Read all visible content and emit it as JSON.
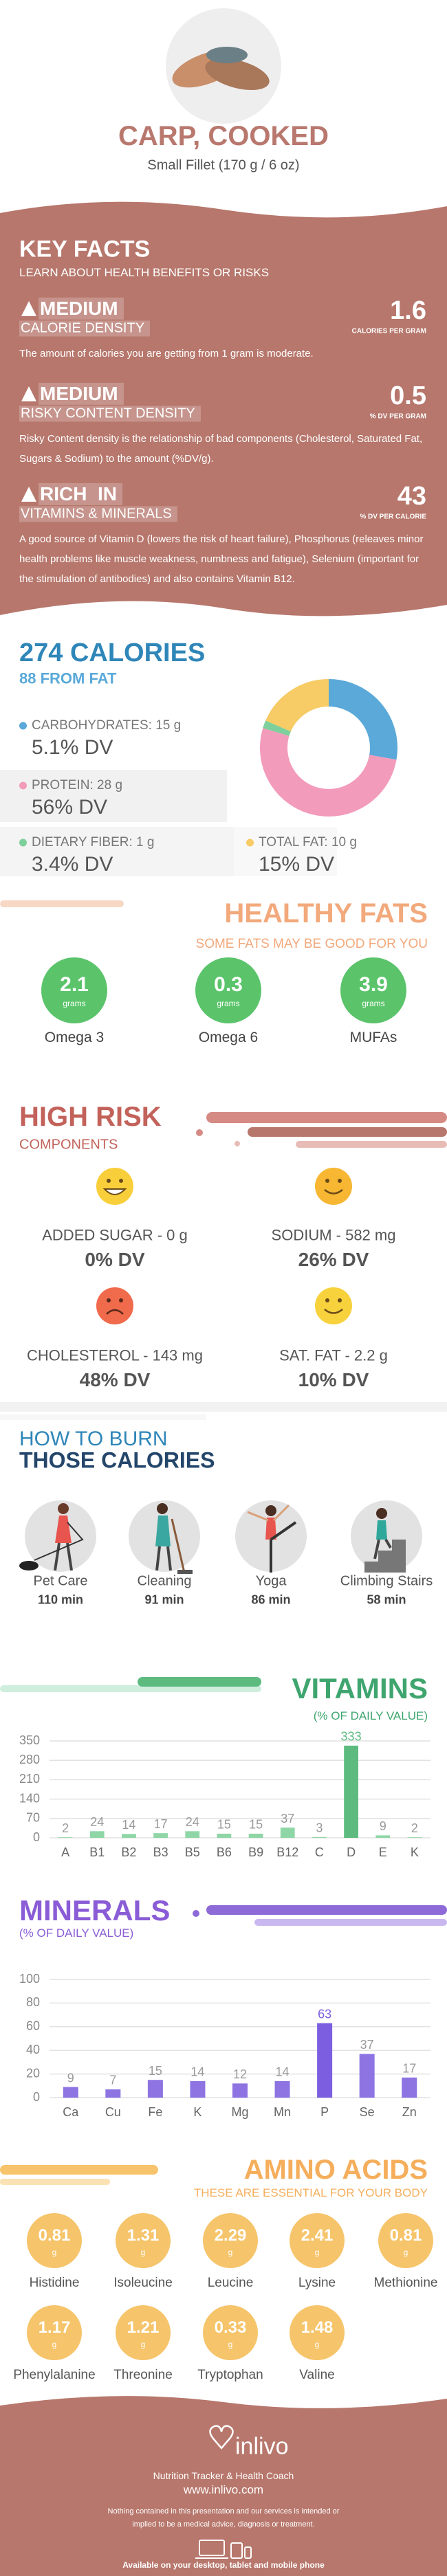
{
  "header": {
    "title": "CARP, COOKED",
    "serving": "Small Fillet (170 g / 6 oz)"
  },
  "key_facts": {
    "title": "KEY FACTS",
    "subtitle": "LEARN ABOUT HEALTH BENEFITS OR RISKS",
    "items": [
      {
        "level": "MEDIUM",
        "name": "CALORIE DENSITY",
        "value": 1.6,
        "unit": "CALORIES PER GRAM",
        "text": "The amount of calories you are getting from 1 gram is moderate."
      },
      {
        "level": "MEDIUM",
        "name": "RISKY CONTENT DENSITY",
        "value": 0.5,
        "unit": "% DV PER GRAM",
        "text": "Risky Content density is the relationship of bad components (Cholesterol, Saturated Fat, Sugars & Sodium) to the amount (%DV/g)."
      },
      {
        "level": "RICH  IN",
        "name": "VITAMINS & MINERALS",
        "value": 43,
        "unit": "% DV PER CALORIE",
        "text": "A good source of Vitamin D (lowers the risk of heart failure), Phosphorus (releaves minor health problems like muscle weakness, numbness and fatigue), Selenium (important for the stimulation of antibodies) and also contains Vitamin B12."
      }
    ]
  },
  "calories": {
    "title": "274 CALORIES",
    "from_fat": "88 FROM FAT",
    "macros": [
      {
        "label": "CARBOHYDRATES:",
        "amount": 15,
        "unit": "g",
        "dv": "5.1% DV",
        "color": "#5aa9d9"
      },
      {
        "label": "PROTEIN:",
        "amount": 28,
        "unit": "g",
        "dv": "56% DV",
        "color": "#f39bbb"
      },
      {
        "label": "DIETARY FIBER:",
        "amount": 1,
        "unit": "g",
        "dv": "3.4% DV",
        "color": "#7dcf9b"
      },
      {
        "label": "TOTAL FAT:",
        "amount": 10,
        "unit": "g",
        "dv": "15% DV",
        "color": "#f7cb65"
      }
    ]
  },
  "healthy_fats": {
    "title": "HEALTHY FATS",
    "subtitle": "SOME FATS MAY BE GOOD FOR YOU",
    "items": [
      {
        "amount": 2.1,
        "unit": "grams",
        "name": "Omega 3"
      },
      {
        "amount": 0.3,
        "unit": "grams",
        "name": "Omega 6"
      },
      {
        "amount": 3.9,
        "unit": "grams",
        "name": "MUFAs"
      }
    ]
  },
  "high_risk": {
    "title": "HIGH RISK",
    "subtitle": "COMPONENTS",
    "items": [
      {
        "label": "ADDED SUGAR - 0 g",
        "dv": "0% DV"
      },
      {
        "label": "SODIUM - 582 mg",
        "dv": "26% DV"
      },
      {
        "label": "CHOLESTEROL - 143 mg",
        "dv": "48% DV"
      },
      {
        "label": "SAT. FAT - 2.2 g",
        "dv": "10% DV"
      }
    ]
  },
  "burn": {
    "title": "HOW TO BURN",
    "subtitle": "THOSE CALORIES",
    "items": [
      {
        "name": "Pet Care",
        "time": "110 min"
      },
      {
        "name": "Cleaning",
        "time": "91 min"
      },
      {
        "name": "Yoga",
        "time": "86 min"
      },
      {
        "name": "Climbing Stairs",
        "time": "58 min"
      }
    ]
  },
  "vitamins": {
    "type": "bar",
    "title": "VITAMINS",
    "subtitle": "(% OF DAILY VALUE)",
    "categories": [
      "A",
      "B1",
      "B2",
      "B3",
      "B5",
      "B6",
      "B9",
      "B12",
      "C",
      "D",
      "E",
      "K"
    ],
    "values": [
      2,
      24,
      14,
      17,
      24,
      15,
      15,
      37,
      3,
      333,
      9,
      2
    ],
    "colors": [
      "#8fd6a6",
      "#8fd6a6",
      "#8fd6a6",
      "#8fd6a6",
      "#8fd6a6",
      "#8fd6a6",
      "#8fd6a6",
      "#8fd6a6",
      "#8fd6a6",
      "#5dbb80",
      "#8fd6a6",
      "#8fd6a6"
    ],
    "ylim": [
      0,
      350
    ],
    "yticks": [
      0,
      70,
      140,
      210,
      280,
      350
    ],
    "grid": true
  },
  "minerals": {
    "type": "bar",
    "title": "MINERALS",
    "subtitle": "(% OF DAILY VALUE)",
    "categories": [
      "Ca",
      "Cu",
      "Fe",
      "K",
      "Mg",
      "Mn",
      "P",
      "Se",
      "Zn"
    ],
    "values": [
      9,
      7,
      15,
      14,
      12,
      14,
      63,
      37,
      17
    ],
    "colors": [
      "#8d74e2",
      "#8d74e2",
      "#8d74e2",
      "#8d74e2",
      "#8d74e2",
      "#8d74e2",
      "#7b5fe0",
      "#8d74e2",
      "#8d74e2"
    ],
    "ylim": [
      0,
      100
    ],
    "yticks": [
      0,
      20,
      40,
      60,
      80,
      100
    ],
    "grid": true
  },
  "amino_acids": {
    "title": "AMINO ACIDS",
    "subtitle": "THESE ARE ESSENTIAL FOR YOUR BODY",
    "items": [
      {
        "name": "Histidine",
        "amount": 0.81,
        "unit": "g"
      },
      {
        "name": "Isoleucine",
        "amount": 1.31,
        "unit": "g"
      },
      {
        "name": "Leucine",
        "amount": 2.29,
        "unit": "g"
      },
      {
        "name": "Lysine",
        "amount": 2.41,
        "unit": "g"
      },
      {
        "name": "Methionine",
        "amount": 0.81,
        "unit": "g"
      },
      {
        "name": "Phenylalanine",
        "amount": 1.17,
        "unit": "g"
      },
      {
        "name": "Threonine",
        "amount": 1.21,
        "unit": "g"
      },
      {
        "name": "Tryptophan",
        "amount": 0.33,
        "unit": "g"
      },
      {
        "name": "Valine",
        "amount": 1.48,
        "unit": "g"
      }
    ]
  },
  "footer": {
    "brand": "inlivo",
    "tagline": "Nutrition Tracker & Health Coach",
    "url": "www.inlivo.com",
    "disclaimer": "Nothing contained in this presentation and our services is intended or implied to be a medical advice, diagnosis or treatment.",
    "availability": "Available on your desktop, tablet and mobile phone"
  }
}
